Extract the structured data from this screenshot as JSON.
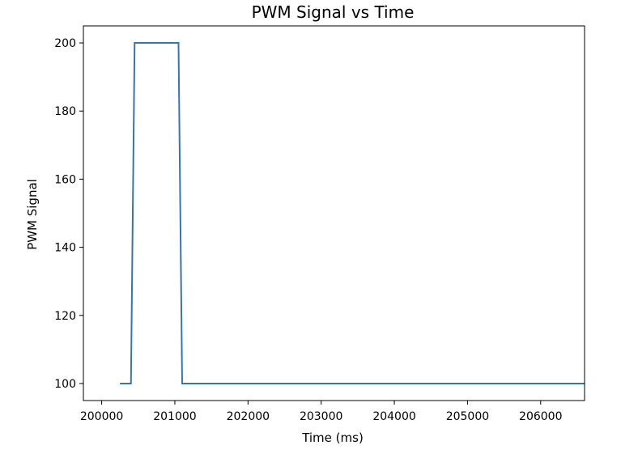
{
  "chart_data": {
    "type": "line",
    "title": "PWM Signal vs Time",
    "xlabel": "Time (ms)",
    "ylabel": "PWM Signal",
    "xlim": [
      199750,
      206600
    ],
    "ylim": [
      95,
      205
    ],
    "grid": false,
    "x_ticks": [
      200000,
      201000,
      202000,
      203000,
      204000,
      205000,
      206000
    ],
    "x_tick_labels": [
      "200000",
      "201000",
      "202000",
      "203000",
      "204000",
      "205000",
      "206000"
    ],
    "y_ticks": [
      100,
      120,
      140,
      160,
      180,
      200
    ],
    "y_tick_labels": [
      "100",
      "120",
      "140",
      "160",
      "180",
      "200"
    ],
    "colors": {
      "series": "#3a75a8"
    },
    "series": [
      {
        "x": [
          200250,
          200400,
          200450,
          201050,
          201100,
          206700
        ],
        "y": [
          100,
          100,
          200,
          200,
          100,
          100
        ]
      }
    ]
  }
}
